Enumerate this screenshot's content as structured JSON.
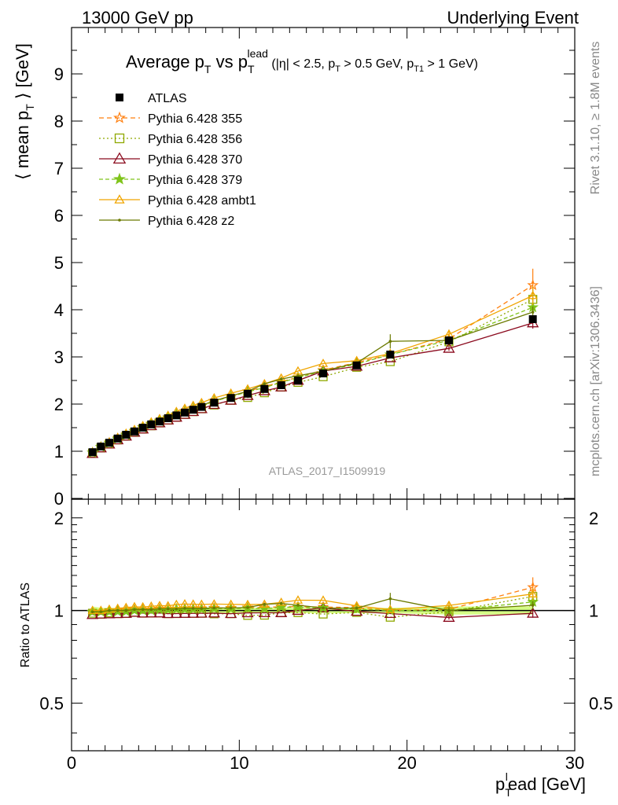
{
  "header": {
    "left": "13000 GeV pp",
    "right": "Underlying Event"
  },
  "plot_title": {
    "main": "Average p",
    "main_sub": "T",
    "vs": " vs p",
    "vs_sub": "T",
    "vs_sup": "lead",
    "cuts": " (|η| < 2.5, p",
    "cuts_sub1": "T",
    "cuts_mid": " > 0.5 GeV, p",
    "cuts_sub2": "T1",
    "cuts_end": " > 1 GeV)"
  },
  "side_labels": {
    "rivet": "Rivet 3.1.10, ≥ 1.8M events",
    "mcplots": "mcplots.cern.ch [arXiv:1306.3436]"
  },
  "analysis_id": "ATLAS_2017_I1509919",
  "colors": {
    "ATLAS": "#000000",
    "p355": "#ff7f0e",
    "p356": "#8fa800",
    "p370": "#8b0a1e",
    "p379": "#7fc41a",
    "ambt1": "#f0a500",
    "z2": "#6b7a00",
    "band": "#ccff66"
  },
  "chart_data": [
    {
      "type": "line",
      "panel": "main",
      "ylabel": "⟨ mean p",
      "ylabel_sub": "T",
      "ylabel_end": " ⟩ [GeV]",
      "xlim": [
        0,
        30
      ],
      "ylim": [
        0,
        10
      ],
      "yticks": [
        0,
        1,
        2,
        3,
        4,
        5,
        6,
        7,
        8,
        9
      ],
      "x": [
        1.25,
        1.75,
        2.25,
        2.75,
        3.25,
        3.75,
        4.25,
        4.75,
        5.25,
        5.75,
        6.25,
        6.75,
        7.25,
        7.75,
        8.5,
        9.5,
        10.5,
        11.5,
        12.5,
        13.5,
        15.0,
        17.0,
        19.0,
        22.5,
        27.5
      ],
      "series": [
        {
          "name": "ATLAS",
          "key": "ATLAS",
          "marker": "square",
          "values": [
            0.98,
            1.1,
            1.18,
            1.27,
            1.35,
            1.42,
            1.5,
            1.57,
            1.63,
            1.7,
            1.76,
            1.82,
            1.88,
            1.94,
            2.03,
            2.13,
            2.22,
            2.32,
            2.4,
            2.5,
            2.65,
            2.82,
            3.05,
            3.35,
            3.8
          ]
        },
        {
          "name": "Pythia 6.428 355",
          "key": "p355",
          "marker": "star-open",
          "dash": "6,4",
          "values": [
            0.97,
            1.09,
            1.18,
            1.27,
            1.35,
            1.43,
            1.51,
            1.58,
            1.65,
            1.72,
            1.78,
            1.85,
            1.91,
            1.97,
            2.07,
            2.17,
            2.27,
            2.37,
            2.47,
            2.57,
            2.72,
            2.88,
            3.05,
            3.38,
            4.52
          ],
          "err": [
            0,
            0,
            0,
            0,
            0,
            0,
            0,
            0,
            0,
            0,
            0,
            0,
            0,
            0,
            0,
            0,
            0,
            0,
            0,
            0,
            0,
            0,
            0,
            0.1,
            0.35
          ]
        },
        {
          "name": "Pythia 6.428 356",
          "key": "p356",
          "marker": "square-open",
          "dash": "2,3",
          "values": [
            0.96,
            1.07,
            1.16,
            1.24,
            1.32,
            1.4,
            1.47,
            1.54,
            1.6,
            1.66,
            1.72,
            1.78,
            1.84,
            1.9,
            1.98,
            2.08,
            2.14,
            2.24,
            2.36,
            2.46,
            2.58,
            2.78,
            2.9,
            3.32,
            4.22
          ],
          "err": [
            0,
            0,
            0,
            0,
            0,
            0,
            0,
            0,
            0,
            0,
            0,
            0,
            0,
            0,
            0,
            0,
            0,
            0,
            0,
            0,
            0,
            0,
            0,
            0.1,
            0.2
          ]
        },
        {
          "name": "Pythia 6.428 370",
          "key": "p370",
          "marker": "triangle-open",
          "values": [
            0.95,
            1.07,
            1.15,
            1.24,
            1.32,
            1.4,
            1.47,
            1.54,
            1.6,
            1.66,
            1.72,
            1.78,
            1.84,
            1.9,
            1.99,
            2.08,
            2.18,
            2.28,
            2.36,
            2.5,
            2.7,
            2.8,
            2.98,
            3.18,
            3.72
          ],
          "err": [
            0,
            0,
            0,
            0,
            0,
            0,
            0,
            0,
            0,
            0,
            0,
            0,
            0,
            0,
            0,
            0,
            0,
            0,
            0,
            0,
            0,
            0,
            0,
            0.05,
            0.12
          ]
        },
        {
          "name": "Pythia 6.428 379",
          "key": "p379",
          "marker": "star",
          "dash": "5,3",
          "values": [
            0.97,
            1.09,
            1.17,
            1.26,
            1.34,
            1.42,
            1.5,
            1.57,
            1.64,
            1.71,
            1.78,
            1.84,
            1.9,
            1.96,
            2.06,
            2.16,
            2.26,
            2.35,
            2.46,
            2.56,
            2.7,
            2.85,
            3.05,
            3.35,
            4.05
          ],
          "err": [
            0,
            0,
            0,
            0,
            0,
            0,
            0,
            0,
            0,
            0,
            0,
            0,
            0,
            0,
            0,
            0,
            0,
            0,
            0,
            0,
            0,
            0,
            0,
            0.08,
            0.15
          ]
        },
        {
          "name": "Pythia 6.428 ambt1",
          "key": "ambt1",
          "marker": "triangle-open-small",
          "values": [
            0.98,
            1.1,
            1.19,
            1.29,
            1.38,
            1.46,
            1.54,
            1.62,
            1.69,
            1.76,
            1.84,
            1.91,
            1.97,
            2.03,
            2.13,
            2.23,
            2.32,
            2.43,
            2.55,
            2.7,
            2.86,
            2.92,
            3.07,
            3.48,
            4.3
          ],
          "err": [
            0,
            0,
            0,
            0,
            0,
            0,
            0,
            0,
            0,
            0,
            0,
            0,
            0,
            0,
            0,
            0,
            0,
            0,
            0,
            0,
            0,
            0,
            0,
            0.1,
            0.2
          ]
        },
        {
          "name": "Pythia 6.428 z2",
          "key": "z2",
          "marker": "dot",
          "values": [
            0.97,
            1.09,
            1.18,
            1.27,
            1.35,
            1.43,
            1.51,
            1.58,
            1.65,
            1.72,
            1.78,
            1.85,
            1.91,
            1.97,
            2.07,
            2.17,
            2.27,
            2.43,
            2.53,
            2.6,
            2.7,
            2.87,
            3.33,
            3.35,
            3.95
          ],
          "err": [
            0,
            0,
            0,
            0,
            0,
            0,
            0,
            0,
            0,
            0,
            0,
            0,
            0,
            0,
            0,
            0,
            0,
            0,
            0,
            0,
            0,
            0,
            0.15,
            0.08,
            0.12
          ]
        }
      ]
    },
    {
      "type": "line",
      "panel": "ratio",
      "ylabel": "Ratio to ATLAS",
      "xlabel": "p",
      "xlabel_sub": "T",
      "xlabel_sup": "l",
      "xlabel_end": "ead [GeV]",
      "xlim": [
        0,
        30
      ],
      "ylim": [
        0.35,
        2.3
      ],
      "yscale": "log",
      "xticks": [
        0,
        10,
        20,
        30
      ],
      "yticks": [
        0.5,
        1,
        2
      ],
      "note": "ratios of each Pythia series to ATLAS",
      "band": {
        "low": [
          0.97,
          0.98,
          0.98,
          0.98,
          0.98,
          0.98,
          0.98,
          0.98,
          0.98,
          0.98,
          0.98,
          0.98,
          0.98,
          0.98,
          0.98,
          0.98,
          0.98,
          0.98,
          0.98,
          0.98,
          0.98,
          0.98,
          0.98,
          0.97,
          0.97
        ],
        "high": [
          1.03,
          1.02,
          1.02,
          1.02,
          1.02,
          1.02,
          1.02,
          1.02,
          1.02,
          1.02,
          1.02,
          1.02,
          1.02,
          1.02,
          1.02,
          1.02,
          1.02,
          1.02,
          1.02,
          1.02,
          1.02,
          1.02,
          1.02,
          1.03,
          1.03
        ]
      }
    }
  ]
}
